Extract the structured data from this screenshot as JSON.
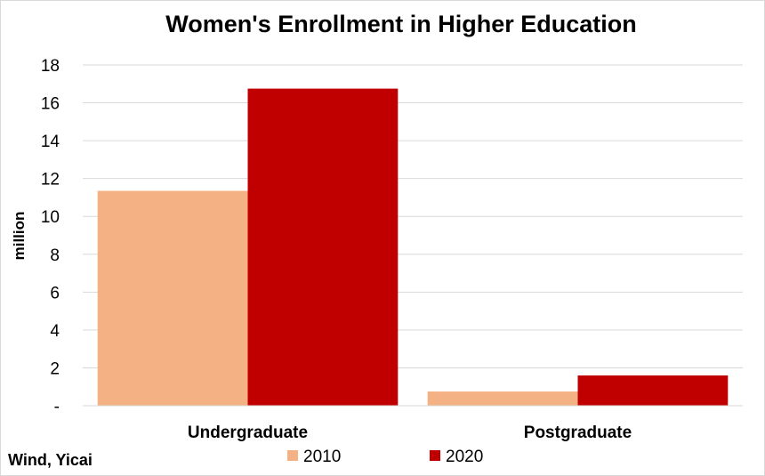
{
  "chart_data": {
    "type": "bar",
    "title": "Women's Enrollment in Higher Education",
    "xlabel": "",
    "ylabel": "million",
    "categories": [
      "Undergraduate",
      "Postgraduate"
    ],
    "series": [
      {
        "name": "2010",
        "values": [
          11.35,
          0.75
        ],
        "color": "#f4b183"
      },
      {
        "name": "2020",
        "values": [
          16.75,
          1.6
        ],
        "color": "#c00000"
      }
    ],
    "ylim": [
      0,
      18
    ],
    "yticks": [
      0,
      2,
      4,
      6,
      8,
      10,
      12,
      14,
      16,
      18
    ],
    "ytick_labels": [
      "-",
      "2",
      "4",
      "6",
      "8",
      "10",
      "12",
      "14",
      "16",
      "18"
    ],
    "grid": true,
    "legend_position": "bottom"
  },
  "source": "Wind, Yicai"
}
